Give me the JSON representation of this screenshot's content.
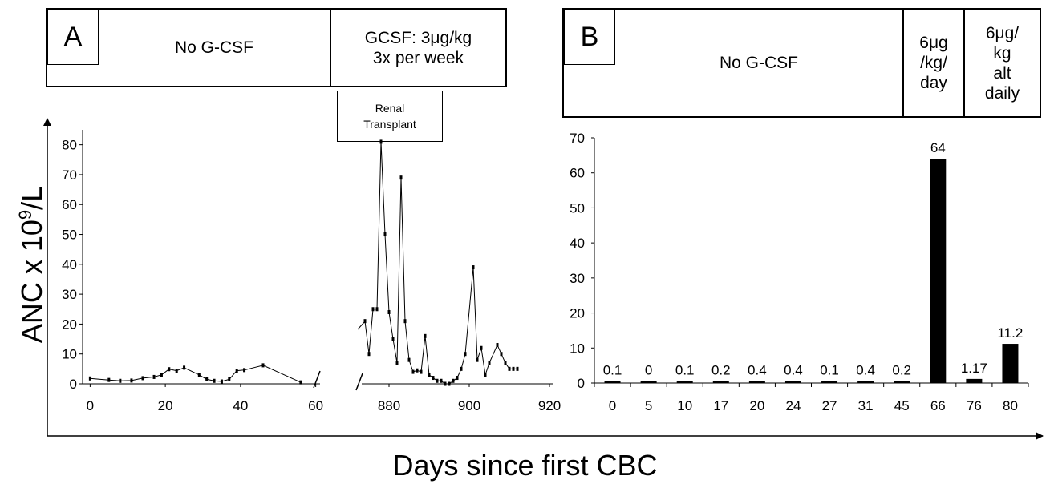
{
  "x_axis_title": "Days since first CBC",
  "y_axis_title_main": "ANC x 10",
  "y_axis_title_sup": "9",
  "y_axis_title_end": "/L",
  "panel_a": {
    "letter": "A",
    "periods": [
      {
        "label": "No G-CSF"
      },
      {
        "label": "GCSF: 3μg/kg\n3x per week"
      }
    ],
    "annotation": "Renal\nTransplant"
  },
  "panel_b": {
    "letter": "B",
    "periods": [
      {
        "label": "No G-CSF"
      },
      {
        "label": "6μg\n/kg/\nday"
      },
      {
        "label": "6μg/\nkg\nalt\ndaily"
      }
    ]
  },
  "chart_data": [
    {
      "type": "line",
      "panel": "A",
      "ylim": [
        0,
        85
      ],
      "yticks": [
        0,
        10,
        20,
        30,
        40,
        50,
        60,
        70,
        80
      ],
      "segments": [
        {
          "xlim": [
            -2,
            62
          ],
          "xticks": [
            0,
            20,
            40,
            60
          ],
          "points": [
            [
              0,
              1.8
            ],
            [
              5,
              1.3
            ],
            [
              8,
              1.0
            ],
            [
              11,
              1.1
            ],
            [
              14,
              1.9
            ],
            [
              17,
              2.3
            ],
            [
              19,
              3.0
            ],
            [
              21,
              4.9
            ],
            [
              23,
              4.4
            ],
            [
              25,
              5.4
            ],
            [
              29,
              3.0
            ],
            [
              31,
              1.5
            ],
            [
              33,
              1.0
            ],
            [
              35,
              0.8
            ],
            [
              37,
              1.5
            ],
            [
              39,
              4.4
            ],
            [
              41,
              4.6
            ],
            [
              46,
              6.2
            ],
            [
              56,
              0.5
            ]
          ]
        },
        {
          "xlim": [
            871,
            921
          ],
          "xticks": [
            880,
            900,
            920
          ],
          "points": [
            [
              874,
              21
            ],
            [
              875,
              10
            ],
            [
              876,
              25
            ],
            [
              877,
              25
            ],
            [
              878,
              81
            ],
            [
              879,
              50
            ],
            [
              880,
              24
            ],
            [
              881,
              15
            ],
            [
              882,
              7
            ],
            [
              883,
              69
            ],
            [
              884,
              21
            ],
            [
              885,
              8
            ],
            [
              886,
              4
            ],
            [
              887,
              4.5
            ],
            [
              888,
              4
            ],
            [
              889,
              16
            ],
            [
              890,
              3
            ],
            [
              891,
              2
            ],
            [
              892,
              1
            ],
            [
              893,
              1
            ],
            [
              894,
              0
            ],
            [
              895,
              0
            ],
            [
              896,
              1
            ],
            [
              897,
              2
            ],
            [
              898,
              5
            ],
            [
              899,
              10
            ],
            [
              901,
              39
            ],
            [
              902,
              8
            ],
            [
              903,
              12
            ],
            [
              904,
              3
            ],
            [
              905,
              7
            ],
            [
              907,
              13
            ],
            [
              908,
              10
            ],
            [
              909,
              7
            ],
            [
              910,
              5
            ],
            [
              911,
              5
            ],
            [
              912,
              5
            ]
          ]
        }
      ]
    },
    {
      "type": "bar",
      "panel": "B",
      "categories": [
        "0",
        "5",
        "10",
        "17",
        "20",
        "24",
        "27",
        "31",
        "45",
        "66",
        "76",
        "80"
      ],
      "values": [
        0.1,
        0,
        0.1,
        0.2,
        0.4,
        0.4,
        0.1,
        0.4,
        0.2,
        64,
        1.17,
        11.2
      ],
      "data_labels": [
        "0.1",
        "0",
        "0.1",
        "0.2",
        "0.4",
        "0.4",
        "0.1",
        "0.4",
        "0.2",
        "64",
        "1.17",
        "11.2"
      ],
      "ylim": [
        0,
        70
      ],
      "yticks": [
        0,
        10,
        20,
        30,
        40,
        50,
        60,
        70
      ]
    }
  ]
}
